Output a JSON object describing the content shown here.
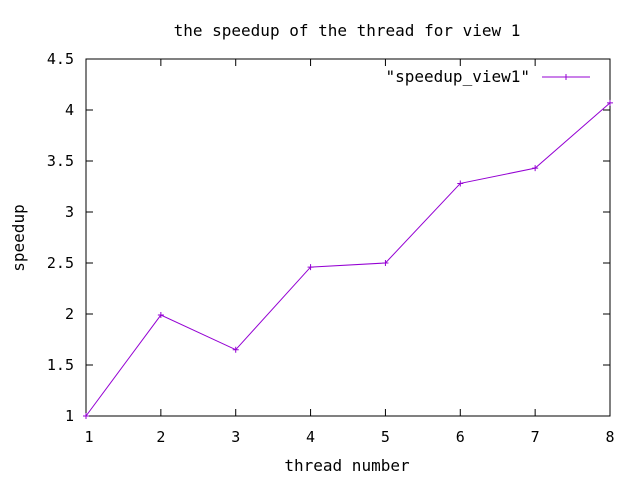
{
  "chart_data": {
    "type": "line",
    "title": "the speedup of the thread for view 1",
    "xlabel": "thread number",
    "ylabel": "speedup",
    "xlim": [
      1,
      8
    ],
    "ylim": [
      1,
      4.5
    ],
    "x_ticks": [
      1,
      2,
      3,
      4,
      5,
      6,
      7,
      8
    ],
    "y_ticks": [
      1,
      1.5,
      2,
      2.5,
      3,
      3.5,
      4,
      4.5
    ],
    "y_tick_labels": [
      "1",
      "1.5",
      "2",
      "2.5",
      "3",
      "3.5",
      "4",
      "4.5"
    ],
    "x_tick_labels": [
      "1",
      "2",
      "3",
      "4",
      "5",
      "6",
      "7",
      "8"
    ],
    "grid": false,
    "legend_position": "top-right",
    "series": [
      {
        "name": "\"speedup_view1\"",
        "color": "#9400d3",
        "marker": "plus",
        "x": [
          1,
          2,
          3,
          4,
          5,
          6,
          7,
          8
        ],
        "values": [
          1.0,
          1.99,
          1.65,
          2.46,
          2.5,
          3.28,
          3.43,
          4.07
        ]
      }
    ]
  }
}
